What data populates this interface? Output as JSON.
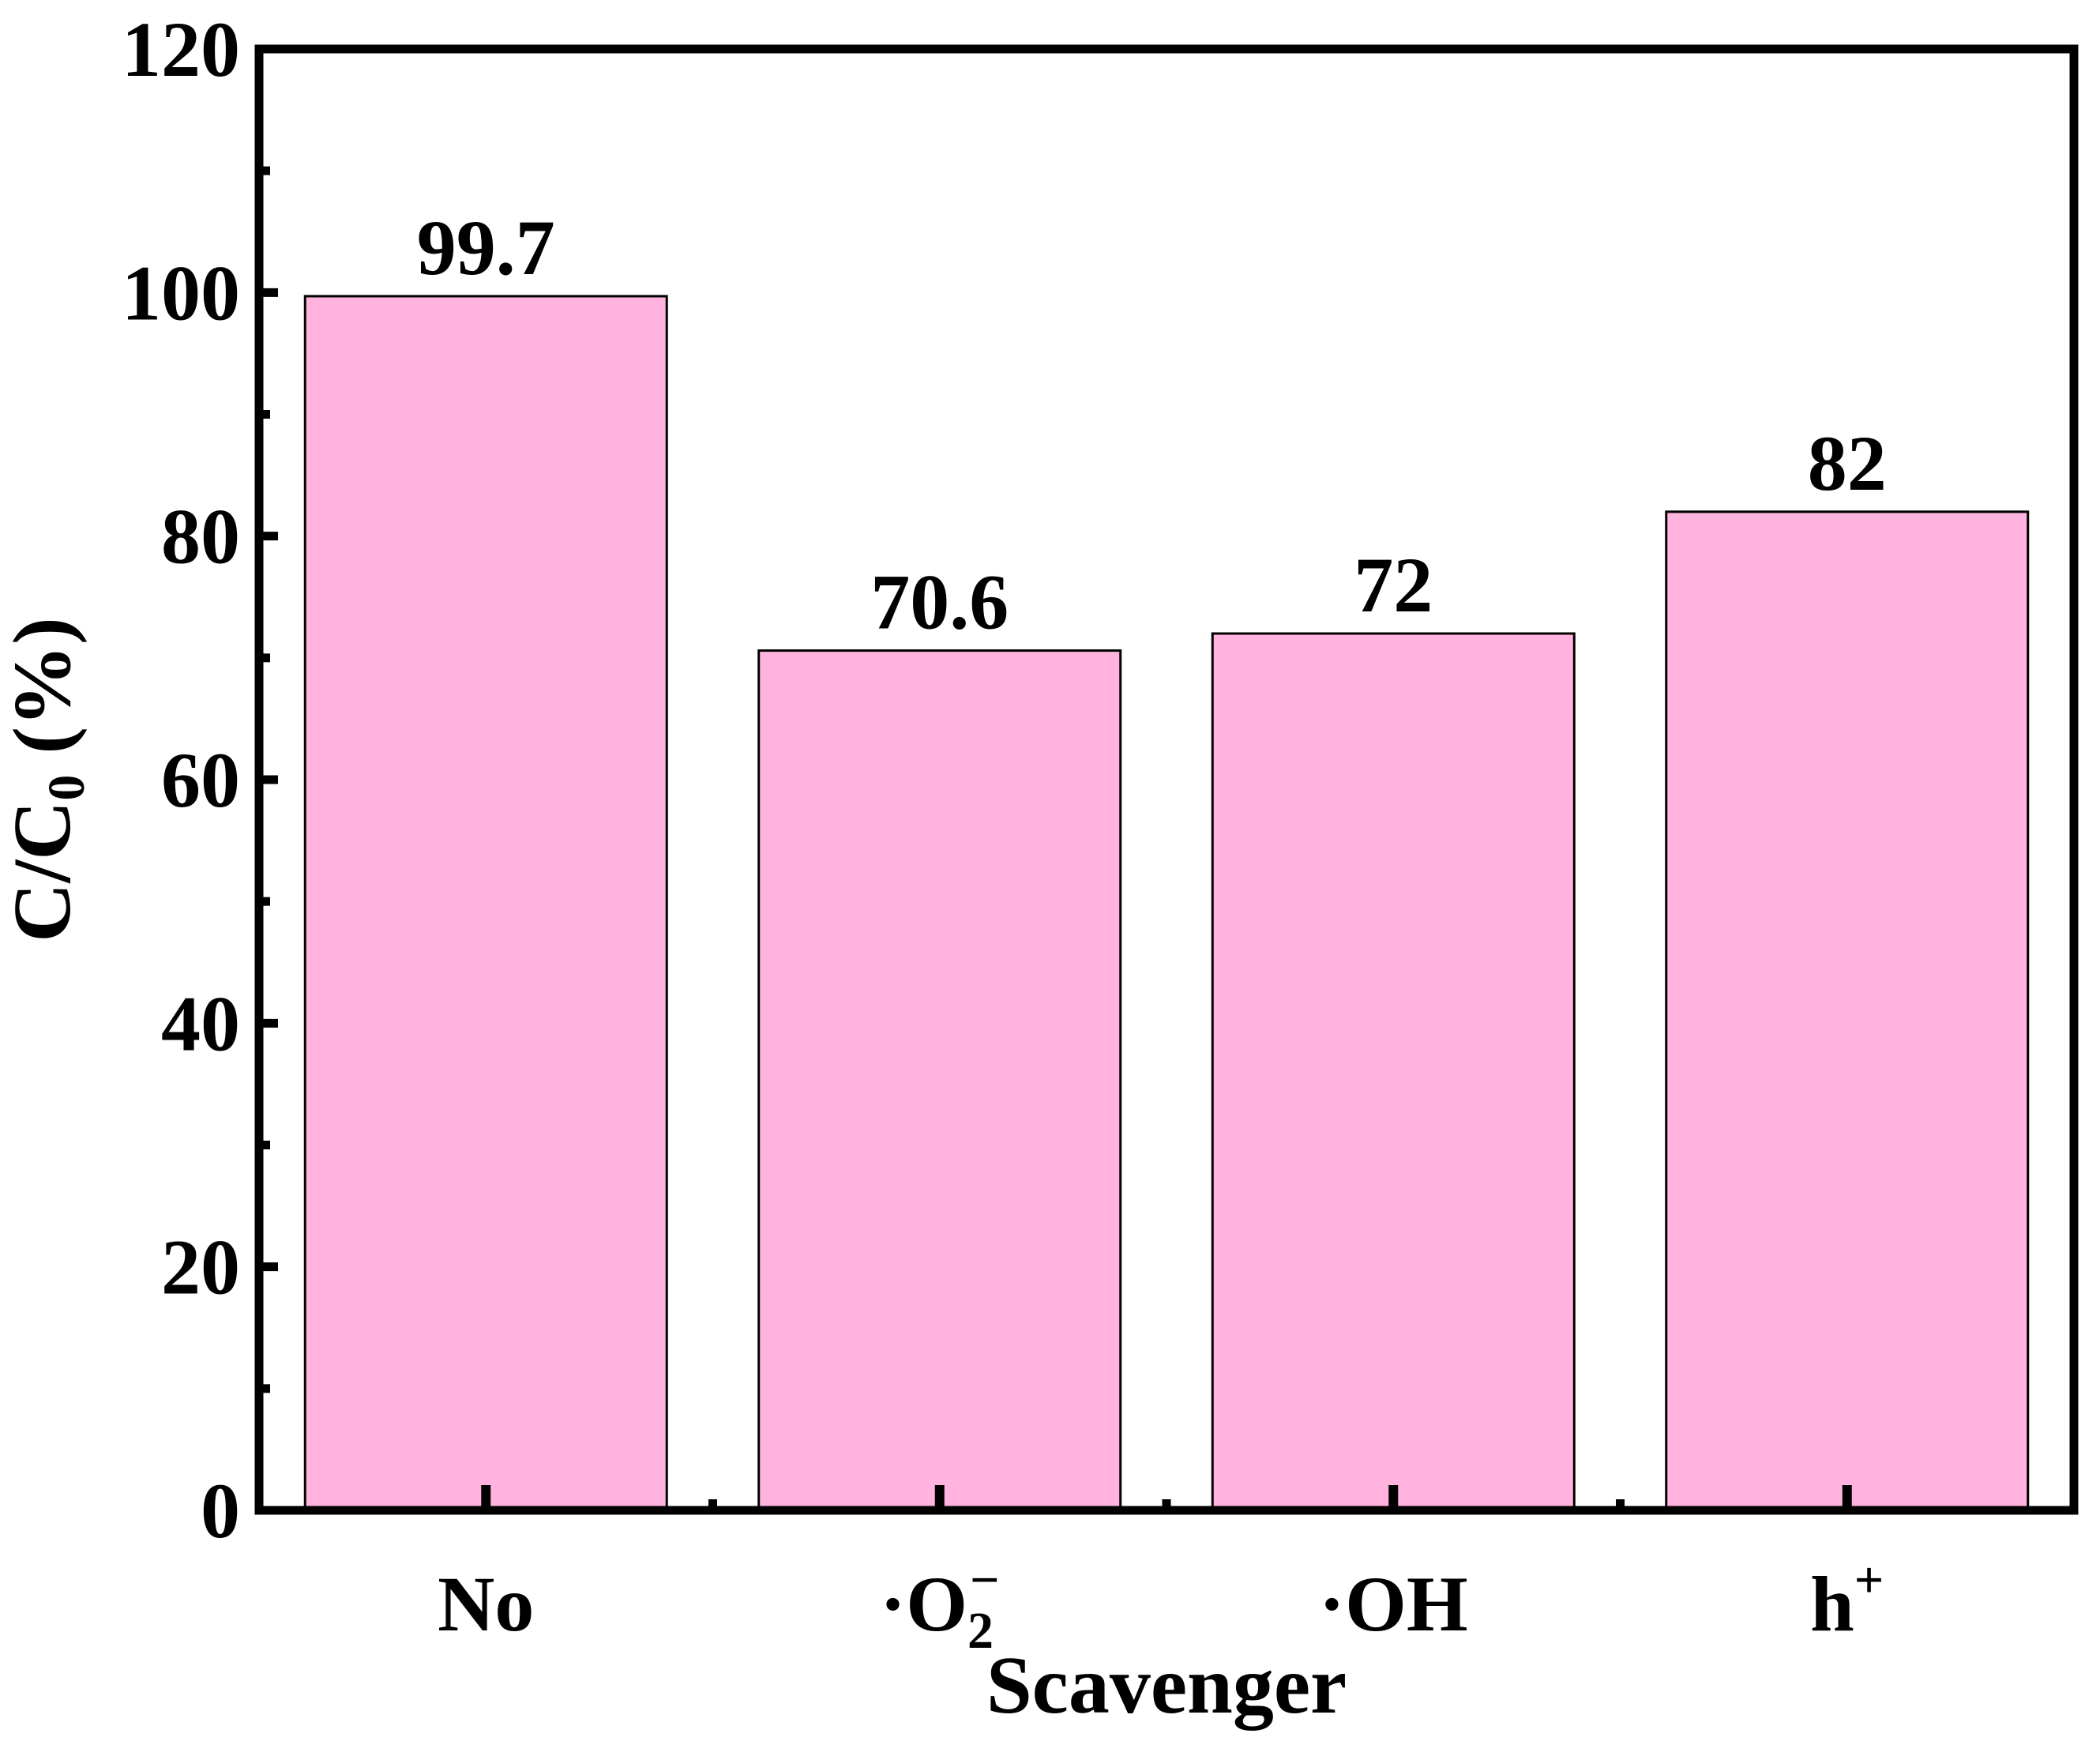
{
  "chart_data": {
    "type": "bar",
    "title": "",
    "xlabel": "Scavenger",
    "ylabel": {
      "main": "C/C",
      "subscript": "0",
      "suffix": " (%)"
    },
    "ylim": [
      0,
      120
    ],
    "yticks": [
      0,
      20,
      40,
      60,
      80,
      100,
      120
    ],
    "grid": false,
    "legend": "none",
    "categories": [
      {
        "base": "No",
        "subscript": "",
        "superscript": ""
      },
      {
        "base": "·O",
        "subscript": "2",
        "superscript": "−"
      },
      {
        "base": "·OH",
        "subscript": "",
        "superscript": ""
      },
      {
        "base": "h",
        "subscript": "",
        "superscript": "+"
      }
    ],
    "values": [
      99.7,
      70.6,
      72,
      82
    ],
    "data_labels": [
      "99.7",
      "70.6",
      "72",
      "82"
    ],
    "colors": {
      "bar_fill": "#FFB3DE",
      "bar_stroke": "#000000",
      "axis": "#000000"
    }
  }
}
